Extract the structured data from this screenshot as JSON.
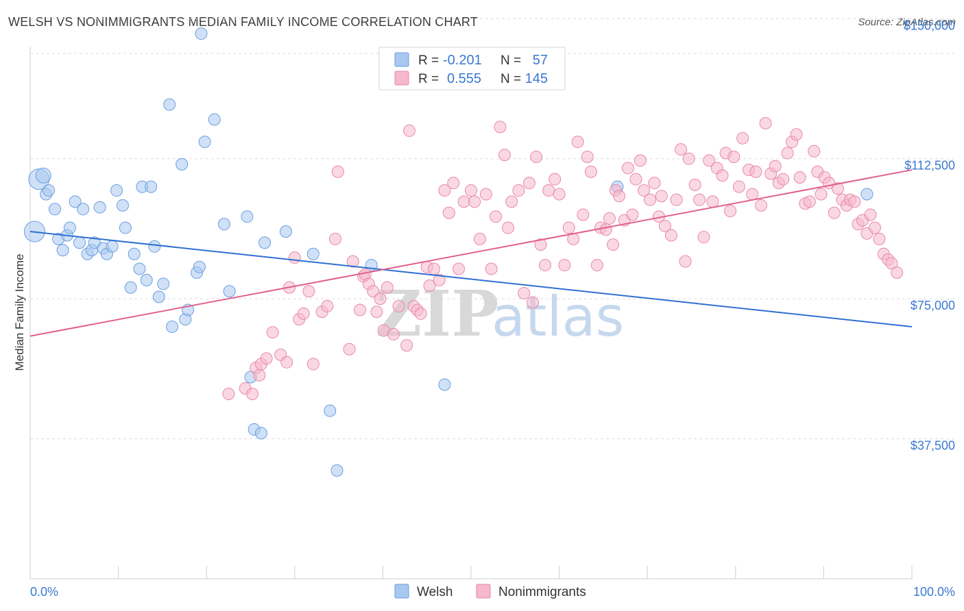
{
  "title": "WELSH VS NONIMMIGRANTS MEDIAN FAMILY INCOME CORRELATION CHART",
  "source": "Source: ZipAtlas.com",
  "watermark": {
    "zip": "ZIP",
    "atlas": "atlas"
  },
  "colors": {
    "welsh_fill": "#a9c8f0",
    "welsh_stroke": "#6a9ee0",
    "welsh_line": "#2e6fd1",
    "non_fill": "#f5b8cc",
    "non_stroke": "#e888aa",
    "non_line": "#e0608e",
    "tick_label": "#3a78d0",
    "grid": "#dcdcdc"
  },
  "legend": {
    "welsh": {
      "r_label": "R =",
      "r_value": "-0.201",
      "n_label": "N =",
      "n_value": "57"
    },
    "non": {
      "r_label": "R =",
      "r_value": "0.555",
      "n_label": "N =",
      "n_value": "145"
    }
  },
  "bottom_legend": {
    "welsh": "Welsh",
    "non": "Nonimmigrants"
  },
  "chart_data": {
    "type": "scatter",
    "title": "WELSH VS NONIMMIGRANTS MEDIAN FAMILY INCOME CORRELATION CHART",
    "xlabel": "",
    "ylabel": "Median Family Income",
    "xlim": [
      0,
      100
    ],
    "ylim": [
      0,
      155000
    ],
    "x_tick_labels": [
      "0.0%",
      "100.0%"
    ],
    "y_ticks": [
      {
        "value": 37500,
        "label": "$37,500"
      },
      {
        "value": 75000,
        "label": "$75,000"
      },
      {
        "value": 112500,
        "label": "$112,500"
      },
      {
        "value": 150000,
        "label": "$150,000"
      }
    ],
    "series": [
      {
        "name": "Welsh",
        "r": -0.201,
        "n": 57,
        "trend": {
          "x": [
            0,
            100
          ],
          "y": [
            93000,
            67500
          ]
        },
        "points": [
          [
            0.5,
            93000,
            3
          ],
          [
            1.0,
            107000,
            3
          ],
          [
            1.5,
            108000,
            2
          ],
          [
            1.8,
            103000,
            1
          ],
          [
            2.1,
            104000,
            1
          ],
          [
            2.8,
            99000,
            1
          ],
          [
            3.2,
            91000,
            1
          ],
          [
            3.7,
            88000,
            1
          ],
          [
            4.2,
            92000,
            1
          ],
          [
            4.5,
            94000,
            1
          ],
          [
            5.1,
            101000,
            1
          ],
          [
            5.6,
            90000,
            1
          ],
          [
            6.0,
            99000,
            1
          ],
          [
            6.5,
            87000,
            1
          ],
          [
            7.0,
            88000,
            1
          ],
          [
            7.3,
            90000,
            1
          ],
          [
            7.9,
            99500,
            1
          ],
          [
            8.3,
            88500,
            1
          ],
          [
            8.7,
            87000,
            1
          ],
          [
            9.3,
            89000,
            1
          ],
          [
            9.8,
            104000,
            1
          ],
          [
            10.5,
            100000,
            1
          ],
          [
            10.8,
            94000,
            1
          ],
          [
            11.4,
            78000,
            1
          ],
          [
            11.8,
            87000,
            1
          ],
          [
            12.4,
            83000,
            1
          ],
          [
            12.7,
            105000,
            1
          ],
          [
            13.2,
            80000,
            1
          ],
          [
            13.7,
            105000,
            1
          ],
          [
            14.1,
            89000,
            1
          ],
          [
            14.6,
            75500,
            1
          ],
          [
            15.1,
            79000,
            1
          ],
          [
            15.8,
            127000,
            1
          ],
          [
            16.1,
            67500,
            1
          ],
          [
            17.2,
            111000,
            1
          ],
          [
            17.6,
            69500,
            1
          ],
          [
            17.9,
            72000,
            1
          ],
          [
            18.9,
            82000,
            1
          ],
          [
            19.2,
            83500,
            1
          ],
          [
            19.4,
            146000,
            1
          ],
          [
            19.8,
            117000,
            1
          ],
          [
            20.9,
            123000,
            1
          ],
          [
            22.0,
            95000,
            1
          ],
          [
            22.6,
            77000,
            1
          ],
          [
            24.6,
            97000,
            1
          ],
          [
            25.0,
            54000,
            1
          ],
          [
            25.4,
            40000,
            1
          ],
          [
            26.2,
            39000,
            1
          ],
          [
            26.6,
            90000,
            1
          ],
          [
            29.0,
            93000,
            1
          ],
          [
            32.1,
            87000,
            1
          ],
          [
            34.0,
            45000,
            1
          ],
          [
            34.8,
            29000,
            1
          ],
          [
            38.7,
            84000,
            1
          ],
          [
            47.0,
            52000,
            1
          ],
          [
            66.6,
            105000,
            1
          ],
          [
            94.9,
            103000,
            1
          ]
        ]
      },
      {
        "name": "Nonimmigrants",
        "r": 0.555,
        "n": 145,
        "trend": {
          "x": [
            0,
            100
          ],
          "y": [
            65000,
            109500
          ]
        },
        "points": [
          [
            22.5,
            49500,
            1
          ],
          [
            24.4,
            51000,
            1
          ],
          [
            25.2,
            49500,
            1
          ],
          [
            25.6,
            56500,
            1
          ],
          [
            26.0,
            54500,
            1
          ],
          [
            26.2,
            57500,
            1
          ],
          [
            26.8,
            59000,
            1
          ],
          [
            27.5,
            66000,
            1
          ],
          [
            28.4,
            60000,
            1
          ],
          [
            29.1,
            58000,
            1
          ],
          [
            29.4,
            78000,
            1
          ],
          [
            30.0,
            86000,
            1
          ],
          [
            30.5,
            69500,
            1
          ],
          [
            31.0,
            71000,
            1
          ],
          [
            31.6,
            77000,
            1
          ],
          [
            32.1,
            57500,
            1
          ],
          [
            33.1,
            71500,
            1
          ],
          [
            33.7,
            73000,
            1
          ],
          [
            34.6,
            91000,
            1
          ],
          [
            34.9,
            109000,
            1
          ],
          [
            36.2,
            61500,
            1
          ],
          [
            36.6,
            85000,
            1
          ],
          [
            37.4,
            72000,
            1
          ],
          [
            37.8,
            81000,
            1
          ],
          [
            38.0,
            81500,
            1
          ],
          [
            38.4,
            79000,
            1
          ],
          [
            38.9,
            77000,
            1
          ],
          [
            39.3,
            71500,
            1
          ],
          [
            39.7,
            75000,
            1
          ],
          [
            40.1,
            66500,
            1
          ],
          [
            40.5,
            78000,
            1
          ],
          [
            41.2,
            65500,
            1
          ],
          [
            41.8,
            73000,
            1
          ],
          [
            42.7,
            62500,
            1
          ],
          [
            43.0,
            120000,
            1
          ],
          [
            43.5,
            73000,
            1
          ],
          [
            43.9,
            72000,
            1
          ],
          [
            44.3,
            71000,
            1
          ],
          [
            45.0,
            83500,
            1
          ],
          [
            45.3,
            78500,
            1
          ],
          [
            45.8,
            83000,
            1
          ],
          [
            46.4,
            80000,
            1
          ],
          [
            47.0,
            104000,
            1
          ],
          [
            47.5,
            98000,
            1
          ],
          [
            48.0,
            106000,
            1
          ],
          [
            48.6,
            83000,
            1
          ],
          [
            49.2,
            101000,
            1
          ],
          [
            50.0,
            104000,
            1
          ],
          [
            50.4,
            101000,
            1
          ],
          [
            51.0,
            91000,
            1
          ],
          [
            51.7,
            103000,
            1
          ],
          [
            52.3,
            83000,
            1
          ],
          [
            52.8,
            97000,
            1
          ],
          [
            53.3,
            121000,
            1
          ],
          [
            53.8,
            113500,
            1
          ],
          [
            54.2,
            94000,
            1
          ],
          [
            54.6,
            101000,
            1
          ],
          [
            55.4,
            104000,
            1
          ],
          [
            56.0,
            76500,
            1
          ],
          [
            56.6,
            106000,
            1
          ],
          [
            57.0,
            74000,
            1
          ],
          [
            57.4,
            113000,
            1
          ],
          [
            57.9,
            89500,
            1
          ],
          [
            58.4,
            84000,
            1
          ],
          [
            58.8,
            104000,
            1
          ],
          [
            59.5,
            107000,
            1
          ],
          [
            60.0,
            103000,
            1
          ],
          [
            60.6,
            84000,
            1
          ],
          [
            61.1,
            94000,
            1
          ],
          [
            61.6,
            91000,
            1
          ],
          [
            62.1,
            117000,
            1
          ],
          [
            62.7,
            97500,
            1
          ],
          [
            63.2,
            113000,
            1
          ],
          [
            63.6,
            109000,
            1
          ],
          [
            64.3,
            84000,
            1
          ],
          [
            64.7,
            94000,
            1
          ],
          [
            65.3,
            93500,
            1
          ],
          [
            65.7,
            96500,
            1
          ],
          [
            66.1,
            89500,
            1
          ],
          [
            66.4,
            104000,
            1
          ],
          [
            66.8,
            102500,
            1
          ],
          [
            67.4,
            96000,
            1
          ],
          [
            67.8,
            110000,
            1
          ],
          [
            68.3,
            97500,
            1
          ],
          [
            68.7,
            107000,
            1
          ],
          [
            69.2,
            112000,
            1
          ],
          [
            69.6,
            104000,
            1
          ],
          [
            70.3,
            101500,
            1
          ],
          [
            70.8,
            106000,
            1
          ],
          [
            71.3,
            97000,
            1
          ],
          [
            71.6,
            102500,
            1
          ],
          [
            72.0,
            94500,
            1
          ],
          [
            72.7,
            92000,
            1
          ],
          [
            73.3,
            101500,
            1
          ],
          [
            73.8,
            115000,
            1
          ],
          [
            74.3,
            85000,
            1
          ],
          [
            74.7,
            112500,
            1
          ],
          [
            75.4,
            105500,
            1
          ],
          [
            75.9,
            101500,
            1
          ],
          [
            76.4,
            91500,
            1
          ],
          [
            77.0,
            112000,
            1
          ],
          [
            77.4,
            101000,
            1
          ],
          [
            77.9,
            110000,
            1
          ],
          [
            78.5,
            108000,
            1
          ],
          [
            78.9,
            114000,
            1
          ],
          [
            79.4,
            98500,
            1
          ],
          [
            79.8,
            113000,
            1
          ],
          [
            80.4,
            105000,
            1
          ],
          [
            80.8,
            118000,
            1
          ],
          [
            81.5,
            109500,
            1
          ],
          [
            81.9,
            103000,
            1
          ],
          [
            82.3,
            109000,
            1
          ],
          [
            82.9,
            100000,
            1
          ],
          [
            83.4,
            122000,
            1
          ],
          [
            84.0,
            108500,
            1
          ],
          [
            84.5,
            110500,
            1
          ],
          [
            84.9,
            106000,
            1
          ],
          [
            85.4,
            107000,
            1
          ],
          [
            85.9,
            114000,
            1
          ],
          [
            86.4,
            117000,
            1
          ],
          [
            86.9,
            119000,
            1
          ],
          [
            87.3,
            107500,
            1
          ],
          [
            87.9,
            100500,
            1
          ],
          [
            88.4,
            101000,
            1
          ],
          [
            88.9,
            114500,
            1
          ],
          [
            89.3,
            109000,
            1
          ],
          [
            89.7,
            103000,
            1
          ],
          [
            90.1,
            107500,
            1
          ],
          [
            90.6,
            106000,
            1
          ],
          [
            91.2,
            98000,
            1
          ],
          [
            91.6,
            104500,
            1
          ],
          [
            92.1,
            101500,
            1
          ],
          [
            92.6,
            100000,
            1
          ],
          [
            93.0,
            101500,
            1
          ],
          [
            93.5,
            101000,
            1
          ],
          [
            93.9,
            95000,
            1
          ],
          [
            94.4,
            96000,
            1
          ],
          [
            94.9,
            92500,
            1
          ],
          [
            95.3,
            97500,
            1
          ],
          [
            95.8,
            94000,
            1
          ],
          [
            96.3,
            91000,
            1
          ],
          [
            96.8,
            87000,
            1
          ],
          [
            97.3,
            85500,
            1
          ],
          [
            97.7,
            84500,
            1
          ],
          [
            98.3,
            82000,
            1
          ]
        ]
      }
    ]
  }
}
